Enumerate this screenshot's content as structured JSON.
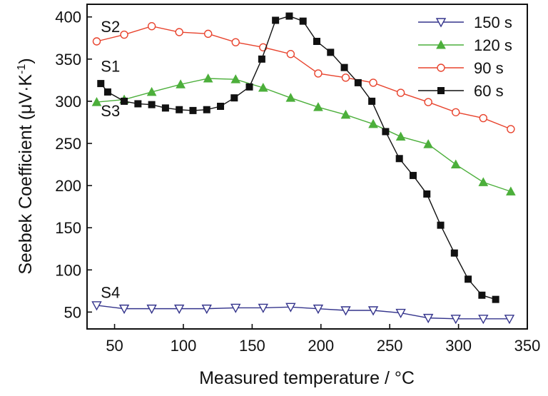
{
  "chart_data": {
    "type": "line",
    "xlabel": "Measured temperature / °C",
    "ylabel": "Seebek Coefficient (μV·K",
    "ylabel_exponent": "-1",
    "ylabel_close": ")",
    "xlim": [
      30,
      350
    ],
    "ylim": [
      30,
      415
    ],
    "xticks": [
      50,
      100,
      150,
      200,
      250,
      300,
      350
    ],
    "yticks": [
      50,
      100,
      150,
      200,
      250,
      300,
      350,
      400
    ],
    "grid": false,
    "legend_position": "top-right",
    "series": [
      {
        "name": "150 s",
        "color": "#34348c",
        "marker": "triangle-down-open",
        "x": [
          37,
          57,
          77,
          97,
          117,
          138,
          158,
          178,
          198,
          218,
          238,
          258,
          278,
          298,
          318,
          337
        ],
        "y": [
          58,
          54,
          54,
          54,
          54,
          55,
          55,
          56,
          54,
          52,
          52,
          49,
          43,
          42,
          42,
          42
        ]
      },
      {
        "name": "120 s",
        "color": "#4caf3b",
        "marker": "triangle-up-filled",
        "x": [
          37,
          57,
          77,
          98,
          118,
          138,
          158,
          178,
          198,
          218,
          238,
          258,
          278,
          298,
          318,
          338
        ],
        "y": [
          299,
          302,
          311,
          320,
          327,
          326,
          316,
          304,
          293,
          284,
          273,
          258,
          249,
          225,
          204,
          193
        ]
      },
      {
        "name": "90 s",
        "color": "#e8432d",
        "marker": "circle-open",
        "x": [
          37,
          57,
          77,
          97,
          118,
          138,
          158,
          178,
          198,
          218,
          238,
          258,
          278,
          298,
          318,
          338
        ],
        "y": [
          371,
          379,
          389,
          382,
          380,
          370,
          364,
          356,
          333,
          328,
          322,
          310,
          299,
          287,
          280,
          267
        ]
      },
      {
        "name": "60 s",
        "color": "#111111",
        "marker": "square-filled",
        "x": [
          40,
          45,
          57,
          67,
          77,
          87,
          97,
          107,
          117,
          127,
          137,
          148,
          157,
          167,
          177,
          187,
          197,
          207,
          217,
          227,
          237,
          247,
          257,
          267,
          277,
          287,
          297,
          307,
          317,
          327
        ],
        "y": [
          321,
          311,
          300,
          297,
          296,
          292,
          290,
          289,
          290,
          294,
          304,
          317,
          350,
          396,
          401,
          395,
          371,
          358,
          340,
          322,
          300,
          264,
          232,
          212,
          190,
          153,
          120,
          89,
          70,
          65
        ]
      }
    ],
    "annotations": [
      {
        "text": "S2",
        "x": 40,
        "y": 382
      },
      {
        "text": "S1",
        "x": 40,
        "y": 335
      },
      {
        "text": "S3",
        "x": 40,
        "y": 282
      },
      {
        "text": "S4",
        "x": 40,
        "y": 67
      }
    ]
  }
}
